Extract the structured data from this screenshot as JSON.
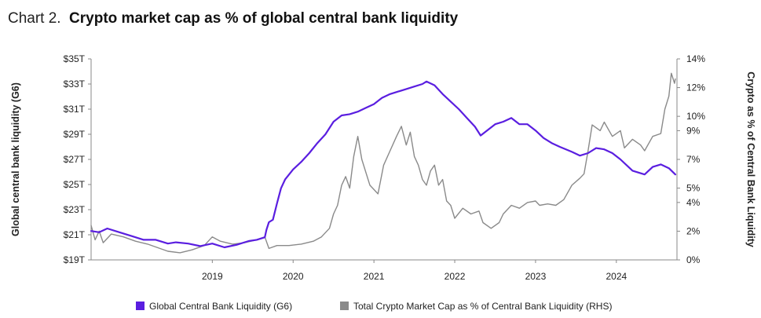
{
  "title": {
    "prefix": "Chart 2.",
    "main": "Crypto market cap as % of global central bank liquidity"
  },
  "chart_data": {
    "type": "line",
    "grid": false,
    "legend_placement": "bottom",
    "x_ticks": [
      "2019",
      "2020",
      "2021",
      "2022",
      "2023",
      "2024"
    ],
    "left_axis": {
      "label": "Global central bank liquidity (G6)",
      "ylim": [
        19,
        35
      ],
      "ticks": [
        {
          "value": 35,
          "label": "$35T"
        },
        {
          "value": 33,
          "label": "$33T"
        },
        {
          "value": 31,
          "label": "$31T"
        },
        {
          "value": 29,
          "label": "$29T"
        },
        {
          "value": 27,
          "label": "$27T"
        },
        {
          "value": 25,
          "label": "$25T"
        },
        {
          "value": 23,
          "label": "$23T"
        },
        {
          "value": 21,
          "label": "$21T"
        },
        {
          "value": 19,
          "label": "$19T"
        }
      ]
    },
    "right_axis": {
      "label": "Crypto as % of Central Bank Liquidity",
      "ylim": [
        0,
        14
      ],
      "ticks": [
        {
          "value": 14,
          "label": "14%"
        },
        {
          "value": 12,
          "label": "12%"
        },
        {
          "value": 10,
          "label": "10%"
        },
        {
          "value": 9,
          "label": "9%"
        },
        {
          "value": 7,
          "label": "7%"
        },
        {
          "value": 5,
          "label": "5%"
        },
        {
          "value": 4,
          "label": "4%"
        },
        {
          "value": 2,
          "label": "2%"
        },
        {
          "value": 0,
          "label": "0%"
        }
      ]
    },
    "series": [
      {
        "name": "Global Central Bank Liquidity (G6)",
        "axis": "left",
        "color": "#5a1ee0",
        "points": [
          [
            2018.0,
            21.3
          ],
          [
            2018.1,
            21.2
          ],
          [
            2018.2,
            21.5
          ],
          [
            2018.35,
            21.2
          ],
          [
            2018.5,
            20.9
          ],
          [
            2018.65,
            20.6
          ],
          [
            2018.8,
            20.6
          ],
          [
            2018.95,
            20.3
          ],
          [
            2019.05,
            20.4
          ],
          [
            2019.2,
            20.3
          ],
          [
            2019.35,
            20.1
          ],
          [
            2019.5,
            20.3
          ],
          [
            2019.65,
            20.0
          ],
          [
            2019.8,
            20.2
          ],
          [
            2019.95,
            20.5
          ],
          [
            2020.05,
            20.6
          ],
          [
            2020.15,
            20.8
          ],
          [
            2020.17,
            21.4
          ],
          [
            2020.2,
            22.0
          ],
          [
            2020.25,
            22.2
          ],
          [
            2020.3,
            23.5
          ],
          [
            2020.35,
            24.7
          ],
          [
            2020.4,
            25.4
          ],
          [
            2020.5,
            26.2
          ],
          [
            2020.6,
            26.8
          ],
          [
            2020.7,
            27.5
          ],
          [
            2020.8,
            28.3
          ],
          [
            2020.9,
            29.0
          ],
          [
            2021.0,
            30.0
          ],
          [
            2021.1,
            30.5
          ],
          [
            2021.2,
            30.6
          ],
          [
            2021.3,
            30.8
          ],
          [
            2021.4,
            31.1
          ],
          [
            2021.5,
            31.4
          ],
          [
            2021.6,
            31.9
          ],
          [
            2021.7,
            32.2
          ],
          [
            2021.8,
            32.4
          ],
          [
            2021.9,
            32.6
          ],
          [
            2022.0,
            32.8
          ],
          [
            2022.1,
            33.0
          ],
          [
            2022.15,
            33.2
          ],
          [
            2022.25,
            32.9
          ],
          [
            2022.35,
            32.2
          ],
          [
            2022.45,
            31.6
          ],
          [
            2022.55,
            31.0
          ],
          [
            2022.65,
            30.3
          ],
          [
            2022.75,
            29.6
          ],
          [
            2022.82,
            28.9
          ],
          [
            2022.9,
            29.3
          ],
          [
            2023.0,
            29.8
          ],
          [
            2023.1,
            30.0
          ],
          [
            2023.2,
            30.3
          ],
          [
            2023.3,
            29.8
          ],
          [
            2023.4,
            29.8
          ],
          [
            2023.5,
            29.3
          ],
          [
            2023.6,
            28.7
          ],
          [
            2023.7,
            28.3
          ],
          [
            2023.8,
            28.0
          ],
          [
            2023.95,
            27.6
          ],
          [
            2024.05,
            27.3
          ],
          [
            2024.15,
            27.5
          ],
          [
            2024.25,
            27.9
          ],
          [
            2024.35,
            27.8
          ],
          [
            2024.45,
            27.5
          ],
          [
            2024.55,
            27.0
          ],
          [
            2024.7,
            26.1
          ],
          [
            2024.85,
            25.8
          ],
          [
            2024.95,
            26.4
          ],
          [
            2025.05,
            26.6
          ],
          [
            2025.15,
            26.3
          ],
          [
            2025.23,
            25.8
          ]
        ]
      },
      {
        "name": "Total Crypto Market Cap as % of Central Bank Liquidity (RHS)",
        "axis": "right",
        "color": "#8a8a8a",
        "points": [
          [
            2018.0,
            2.4
          ],
          [
            2018.05,
            1.4
          ],
          [
            2018.1,
            2.0
          ],
          [
            2018.15,
            1.2
          ],
          [
            2018.25,
            1.8
          ],
          [
            2018.4,
            1.6
          ],
          [
            2018.55,
            1.3
          ],
          [
            2018.7,
            1.1
          ],
          [
            2018.85,
            0.8
          ],
          [
            2018.95,
            0.6
          ],
          [
            2019.1,
            0.5
          ],
          [
            2019.25,
            0.7
          ],
          [
            2019.4,
            1.0
          ],
          [
            2019.5,
            1.6
          ],
          [
            2019.6,
            1.3
          ],
          [
            2019.75,
            1.1
          ],
          [
            2019.9,
            1.2
          ],
          [
            2020.05,
            1.4
          ],
          [
            2020.15,
            1.6
          ],
          [
            2020.2,
            0.8
          ],
          [
            2020.3,
            1.0
          ],
          [
            2020.45,
            1.0
          ],
          [
            2020.6,
            1.1
          ],
          [
            2020.75,
            1.3
          ],
          [
            2020.85,
            1.6
          ],
          [
            2020.95,
            2.2
          ],
          [
            2021.0,
            3.2
          ],
          [
            2021.05,
            3.8
          ],
          [
            2021.1,
            5.2
          ],
          [
            2021.15,
            5.8
          ],
          [
            2021.2,
            5.0
          ],
          [
            2021.25,
            7.2
          ],
          [
            2021.3,
            8.6
          ],
          [
            2021.35,
            7.0
          ],
          [
            2021.45,
            5.2
          ],
          [
            2021.55,
            4.6
          ],
          [
            2021.62,
            6.6
          ],
          [
            2021.7,
            7.6
          ],
          [
            2021.78,
            8.6
          ],
          [
            2021.84,
            9.3
          ],
          [
            2021.9,
            8.0
          ],
          [
            2021.95,
            8.9
          ],
          [
            2022.0,
            7.2
          ],
          [
            2022.05,
            6.6
          ],
          [
            2022.1,
            5.6
          ],
          [
            2022.15,
            5.2
          ],
          [
            2022.2,
            6.2
          ],
          [
            2022.25,
            6.6
          ],
          [
            2022.3,
            5.2
          ],
          [
            2022.35,
            5.6
          ],
          [
            2022.4,
            4.1
          ],
          [
            2022.45,
            3.8
          ],
          [
            2022.5,
            2.9
          ],
          [
            2022.6,
            3.6
          ],
          [
            2022.7,
            3.2
          ],
          [
            2022.8,
            3.4
          ],
          [
            2022.85,
            2.6
          ],
          [
            2022.95,
            2.2
          ],
          [
            2023.05,
            2.6
          ],
          [
            2023.1,
            3.2
          ],
          [
            2023.2,
            3.8
          ],
          [
            2023.3,
            3.6
          ],
          [
            2023.4,
            4.0
          ],
          [
            2023.5,
            4.1
          ],
          [
            2023.55,
            3.8
          ],
          [
            2023.65,
            3.9
          ],
          [
            2023.75,
            3.8
          ],
          [
            2023.85,
            4.2
          ],
          [
            2023.95,
            5.2
          ],
          [
            2024.05,
            5.7
          ],
          [
            2024.1,
            6.0
          ],
          [
            2024.15,
            7.6
          ],
          [
            2024.2,
            9.4
          ],
          [
            2024.3,
            9.0
          ],
          [
            2024.35,
            9.6
          ],
          [
            2024.45,
            8.6
          ],
          [
            2024.55,
            9.0
          ],
          [
            2024.6,
            7.8
          ],
          [
            2024.7,
            8.4
          ],
          [
            2024.8,
            8.0
          ],
          [
            2024.85,
            7.6
          ],
          [
            2024.95,
            8.6
          ],
          [
            2025.05,
            8.8
          ],
          [
            2025.1,
            10.5
          ],
          [
            2025.15,
            11.4
          ],
          [
            2025.18,
            13.0
          ],
          [
            2025.22,
            12.3
          ],
          [
            2025.23,
            12.6
          ]
        ]
      }
    ]
  }
}
